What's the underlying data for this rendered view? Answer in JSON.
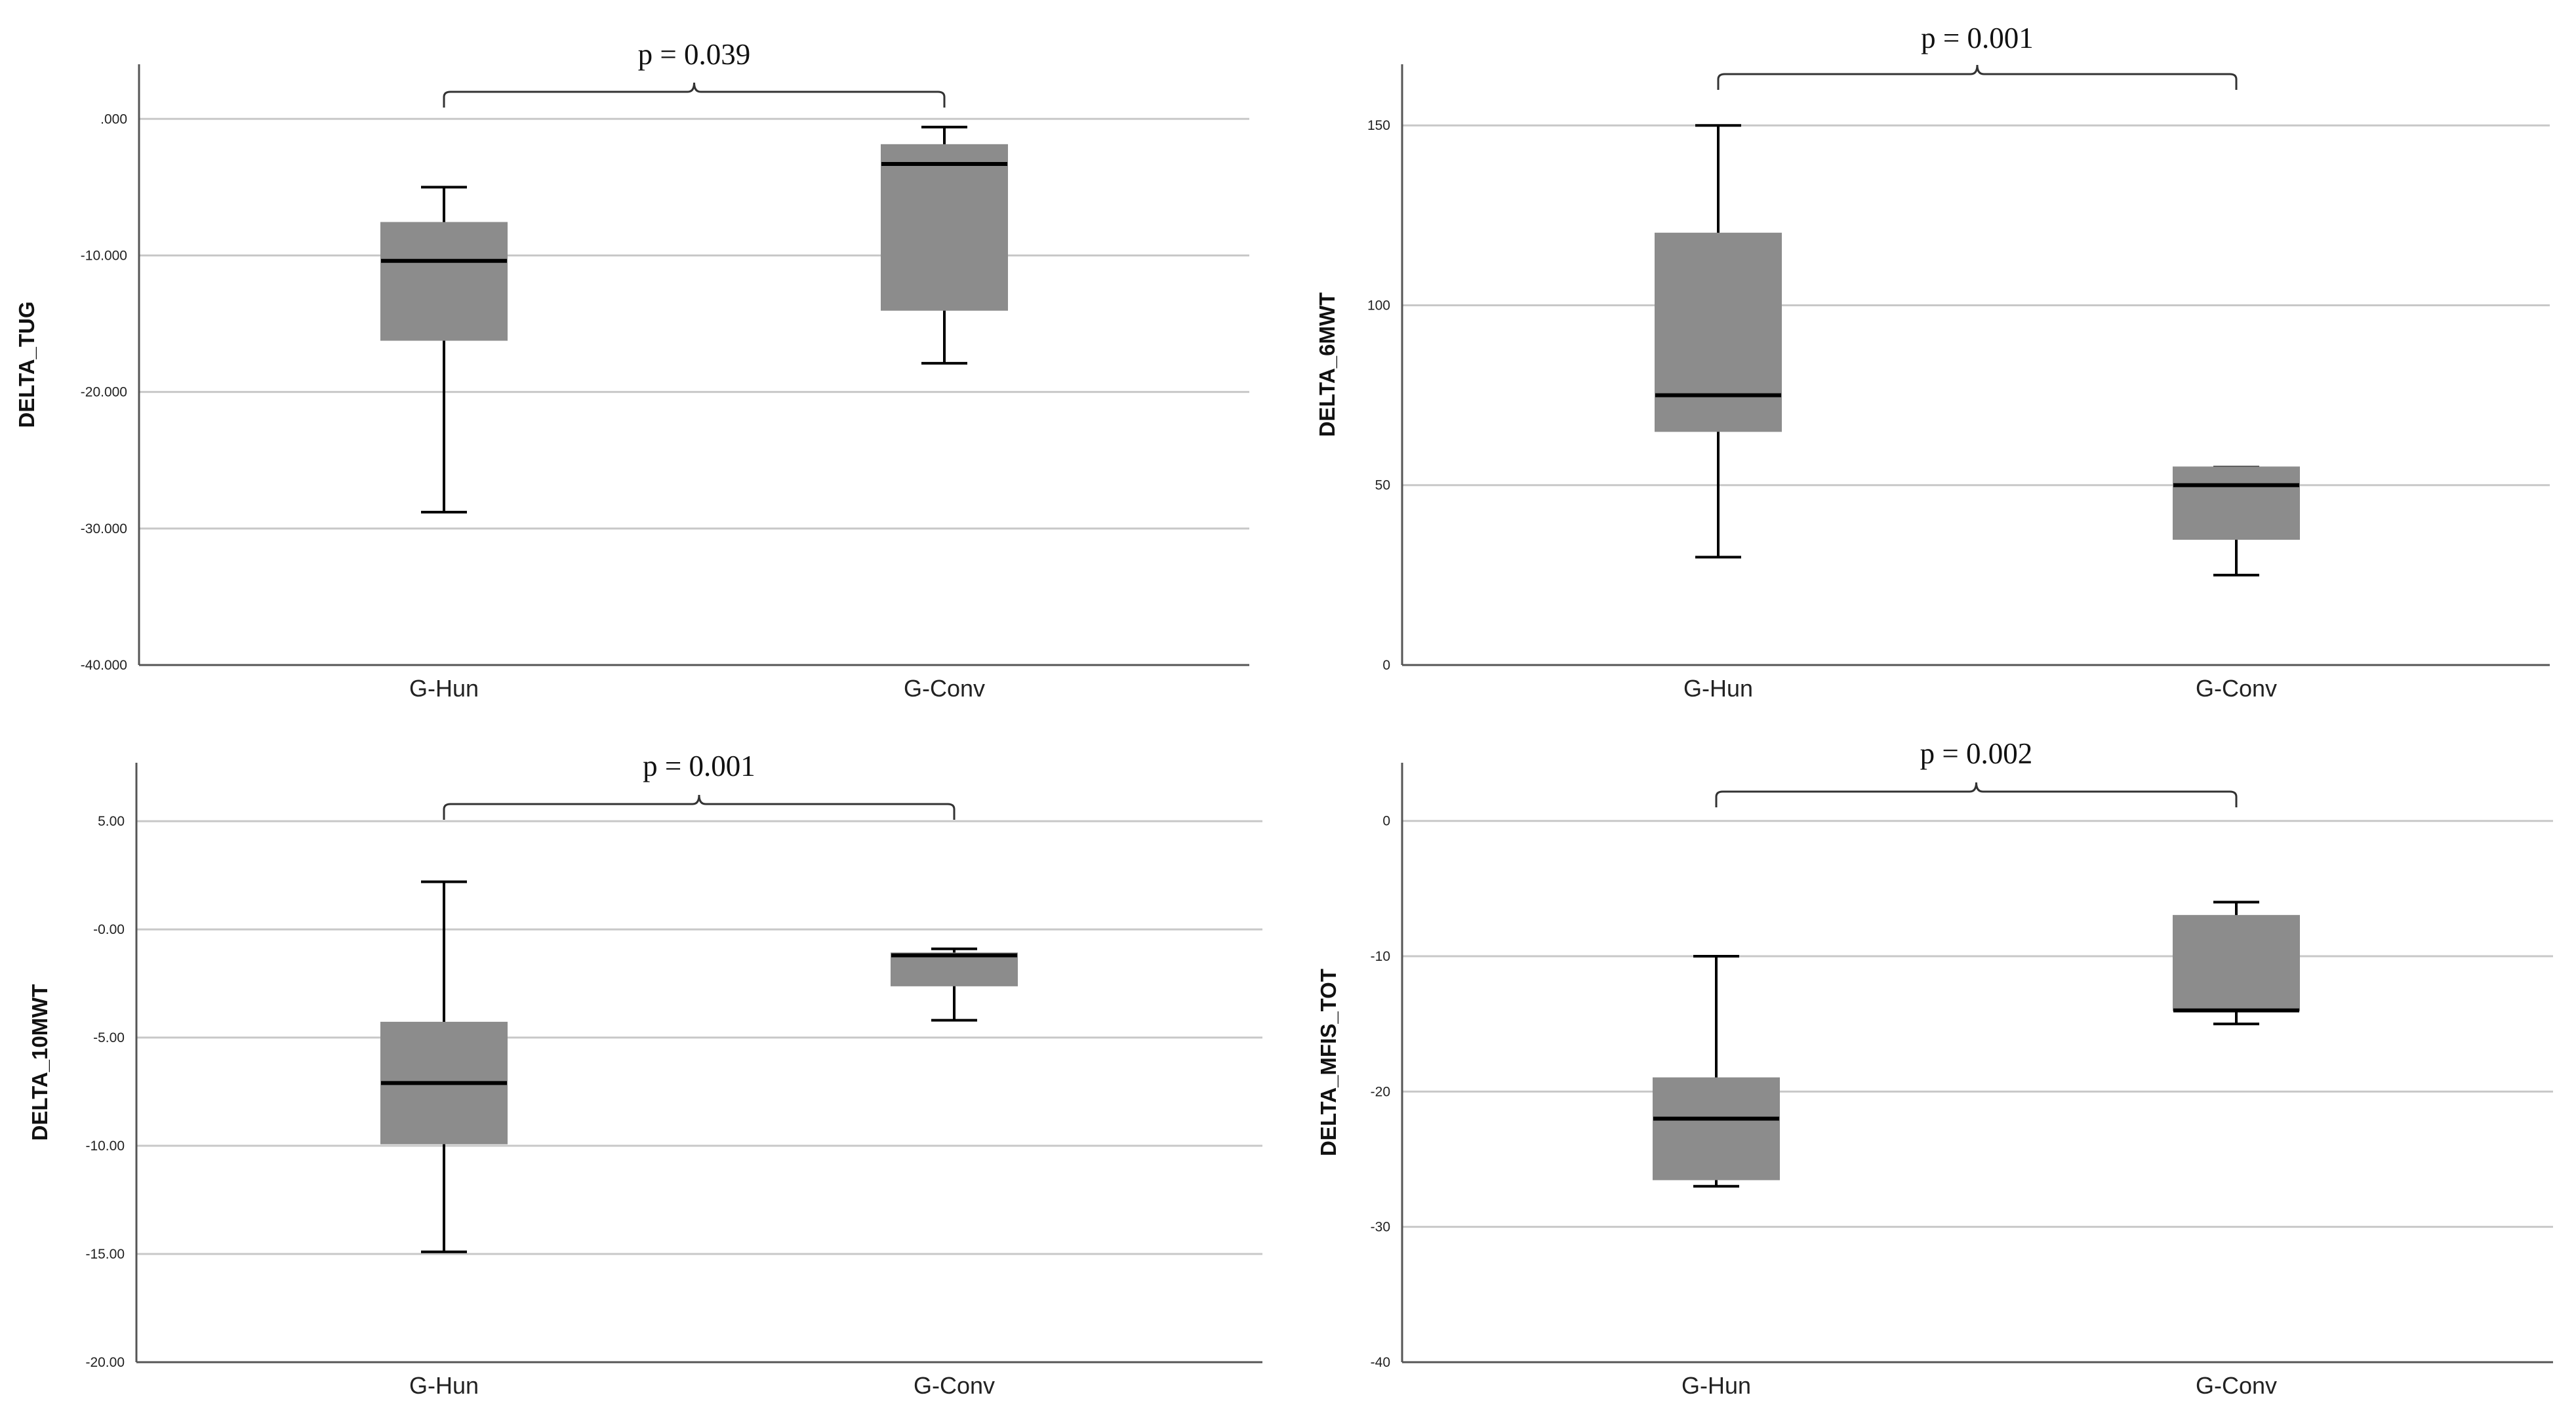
{
  "chart_data": [
    {
      "type": "box",
      "title": "",
      "ylabel": "DELTA_TUG",
      "xlabel": "",
      "ylim": [
        -40,
        4
      ],
      "yticks": [
        0,
        -10,
        -20,
        -30,
        -40
      ],
      "ytick_labels": [
        ".000",
        "-10.000",
        "-20.000",
        "-30.000",
        "-40.000"
      ],
      "grid": true,
      "categories": [
        "G-Hun",
        "G-Conv"
      ],
      "boxes": [
        {
          "name": "G-Hun",
          "whisker_low": -28.8,
          "q1": -16.2,
          "median": -10.4,
          "q3": -7.6,
          "whisker_high": -5.0
        },
        {
          "name": "G-Conv",
          "whisker_low": -17.9,
          "q1": -14.0,
          "median": -3.3,
          "q3": -1.9,
          "whisker_high": -0.6
        }
      ],
      "annotation": {
        "text": "p = 0.039",
        "between": [
          "G-Hun",
          "G-Conv"
        ]
      }
    },
    {
      "type": "box",
      "title": "",
      "ylabel": "DELTA_6MWT",
      "xlabel": "",
      "ylim": [
        0,
        167
      ],
      "yticks": [
        0,
        50,
        100,
        150
      ],
      "ytick_labels": [
        "0",
        "50",
        "100",
        "150"
      ],
      "grid": true,
      "categories": [
        "G-Hun",
        "G-Conv"
      ],
      "boxes": [
        {
          "name": "G-Hun",
          "whisker_low": 30,
          "q1": 65,
          "median": 75,
          "q3": 120,
          "whisker_high": 150
        },
        {
          "name": "G-Conv",
          "whisker_low": 25,
          "q1": 35,
          "median": 50,
          "q3": 55,
          "whisker_high": 55
        }
      ],
      "annotation": {
        "text": "p = 0.001",
        "between": [
          "G-Hun",
          "G-Conv"
        ]
      }
    },
    {
      "type": "box",
      "title": "",
      "ylabel": "DELTA_10MWT",
      "xlabel": "",
      "ylim": [
        -20,
        7.7
      ],
      "yticks": [
        5,
        0,
        -5,
        -10,
        -15,
        -20
      ],
      "ytick_labels": [
        "5.00",
        "-0.00",
        "-5.00",
        "-10.00",
        "-15.00",
        "-20.00"
      ],
      "grid": true,
      "categories": [
        "G-Hun",
        "G-Conv"
      ],
      "boxes": [
        {
          "name": "G-Hun",
          "whisker_low": -14.9,
          "q1": -9.9,
          "median": -7.1,
          "q3": -4.3,
          "whisker_high": 2.2
        },
        {
          "name": "G-Conv",
          "whisker_low": -4.2,
          "q1": -2.6,
          "median": -1.2,
          "q3": -1.1,
          "whisker_high": -0.9
        }
      ],
      "annotation": {
        "text": "p = 0.001",
        "between": [
          "G-Hun",
          "G-Conv"
        ]
      }
    },
    {
      "type": "box",
      "title": "",
      "ylabel": "DELTA_MFIS_TOT",
      "xlabel": "",
      "ylim": [
        -40,
        4.3
      ],
      "yticks": [
        0,
        -10,
        -20,
        -30,
        -40
      ],
      "ytick_labels": [
        "0",
        "-10",
        "-20",
        "-30",
        "-40"
      ],
      "grid": true,
      "categories": [
        "G-Hun",
        "G-Conv"
      ],
      "boxes": [
        {
          "name": "G-Hun",
          "whisker_low": -27,
          "q1": -26.5,
          "median": -22,
          "q3": -19,
          "whisker_high": -10
        },
        {
          "name": "G-Conv",
          "whisker_low": -15,
          "q1": -14,
          "median": -14,
          "q3": -7,
          "whisker_high": -6
        }
      ],
      "annotation": {
        "text": "p = 0.002",
        "between": [
          "G-Hun",
          "G-Conv"
        ]
      }
    }
  ]
}
